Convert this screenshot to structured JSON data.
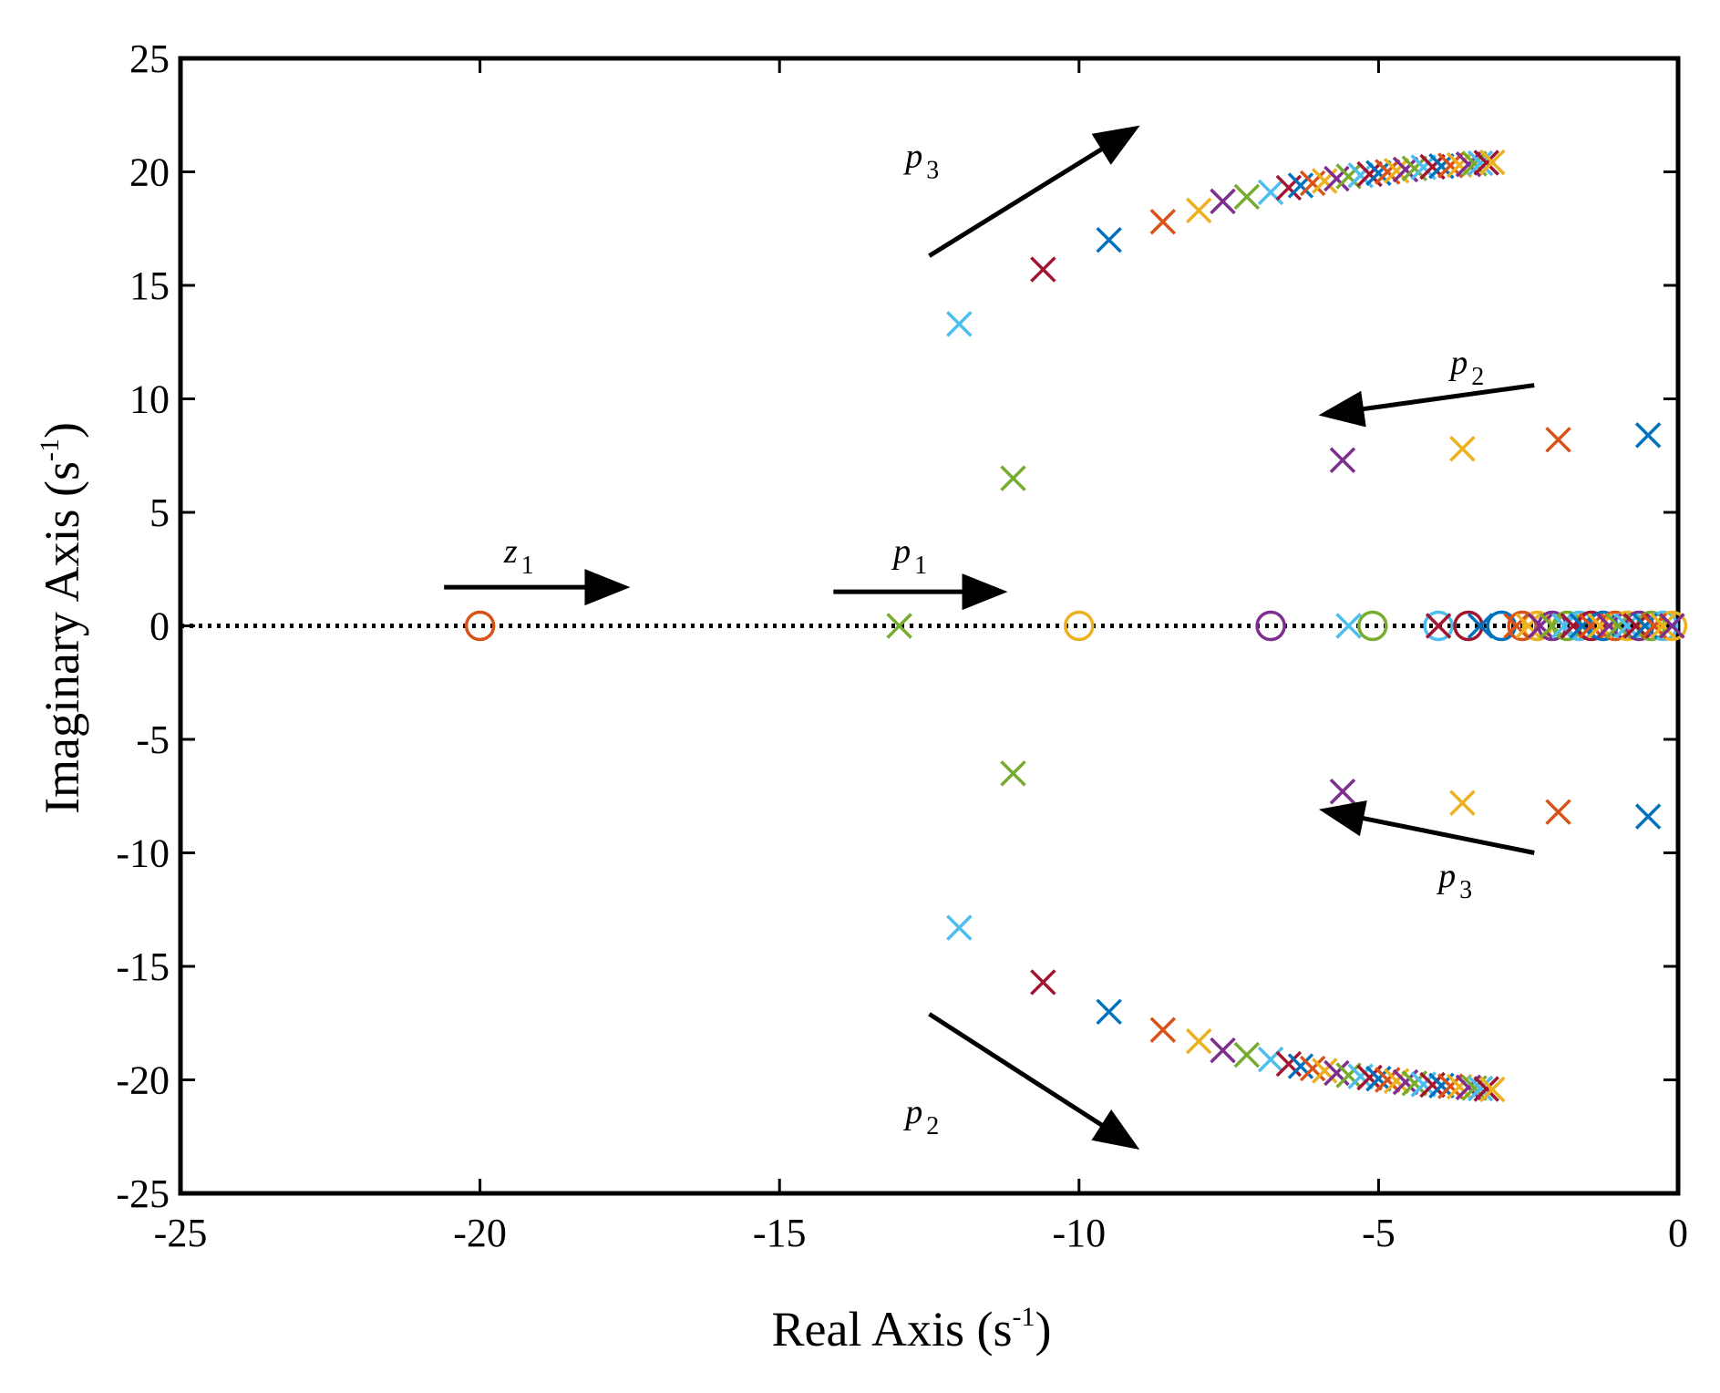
{
  "chart_data": {
    "type": "scatter",
    "title": "",
    "xlabel": "Real Axis (s",
    "xlabel_sup": "-1",
    "xlabel_close": ")",
    "ylabel": "Imaginary Axis (s",
    "ylabel_sup": "-1",
    "ylabel_close": ")",
    "xlim": [
      -25,
      0
    ],
    "ylim": [
      -25,
      25
    ],
    "xticks": [
      -25,
      -20,
      -15,
      -10,
      -5,
      0
    ],
    "yticks": [
      -25,
      -20,
      -15,
      -10,
      -5,
      0,
      5,
      10,
      15,
      20,
      25
    ],
    "xtick_labels": [
      "-25",
      "-20",
      "-15",
      "-10",
      "-5",
      "0"
    ],
    "ytick_labels": [
      "-25",
      "-20",
      "-15",
      "-10",
      "-5",
      "0",
      "5",
      "10",
      "15",
      "20",
      "25"
    ],
    "grid": false,
    "palette": [
      "#0072bd",
      "#d95319",
      "#edb120",
      "#7e2f8e",
      "#77ac30",
      "#4dbeee",
      "#a2142f"
    ],
    "zero_line": {
      "style": "dotted",
      "y": 0
    },
    "poles": [
      {
        "re": -0.5,
        "im": 8.4,
        "color": "#0072bd"
      },
      {
        "re": -0.5,
        "im": -8.4,
        "color": "#0072bd"
      },
      {
        "re": -2.0,
        "im": 8.2,
        "color": "#d95319"
      },
      {
        "re": -2.0,
        "im": -8.2,
        "color": "#d95319"
      },
      {
        "re": -3.6,
        "im": 7.8,
        "color": "#edb120"
      },
      {
        "re": -3.6,
        "im": -7.8,
        "color": "#edb120"
      },
      {
        "re": -5.6,
        "im": 7.3,
        "color": "#7e2f8e"
      },
      {
        "re": -5.6,
        "im": -7.3,
        "color": "#7e2f8e"
      },
      {
        "re": -11.1,
        "im": 6.5,
        "color": "#77ac30"
      },
      {
        "re": -11.1,
        "im": -6.5,
        "color": "#77ac30"
      },
      {
        "re": -12.0,
        "im": 13.3,
        "color": "#4dbeee"
      },
      {
        "re": -12.0,
        "im": -13.3,
        "color": "#4dbeee"
      },
      {
        "re": -10.6,
        "im": 15.7,
        "color": "#a2142f"
      },
      {
        "re": -10.6,
        "im": -15.7,
        "color": "#a2142f"
      },
      {
        "re": -9.5,
        "im": 17.0,
        "color": "#0072bd"
      },
      {
        "re": -9.5,
        "im": -17.0,
        "color": "#0072bd"
      },
      {
        "re": -8.6,
        "im": 17.8,
        "color": "#d95319"
      },
      {
        "re": -8.6,
        "im": -17.8,
        "color": "#d95319"
      },
      {
        "re": -8.0,
        "im": 18.3,
        "color": "#edb120"
      },
      {
        "re": -8.0,
        "im": -18.3,
        "color": "#edb120"
      },
      {
        "re": -7.6,
        "im": 18.7,
        "color": "#7e2f8e"
      },
      {
        "re": -7.6,
        "im": -18.7,
        "color": "#7e2f8e"
      },
      {
        "re": -7.2,
        "im": 18.9,
        "color": "#77ac30"
      },
      {
        "re": -7.2,
        "im": -18.9,
        "color": "#77ac30"
      },
      {
        "re": -6.8,
        "im": 19.1,
        "color": "#4dbeee"
      },
      {
        "re": -6.8,
        "im": -19.1,
        "color": "#4dbeee"
      },
      {
        "re": -6.5,
        "im": 19.3,
        "color": "#a2142f"
      },
      {
        "re": -6.5,
        "im": -19.3,
        "color": "#a2142f"
      },
      {
        "re": -6.3,
        "im": 19.4,
        "color": "#0072bd"
      },
      {
        "re": -6.3,
        "im": -19.4,
        "color": "#0072bd"
      },
      {
        "re": -6.1,
        "im": 19.5,
        "color": "#d95319"
      },
      {
        "re": -6.1,
        "im": -19.5,
        "color": "#d95319"
      },
      {
        "re": -5.9,
        "im": 19.6,
        "color": "#edb120"
      },
      {
        "re": -5.9,
        "im": -19.6,
        "color": "#edb120"
      },
      {
        "re": -5.7,
        "im": 19.7,
        "color": "#7e2f8e"
      },
      {
        "re": -5.7,
        "im": -19.7,
        "color": "#7e2f8e"
      },
      {
        "re": -5.5,
        "im": 19.8,
        "color": "#77ac30"
      },
      {
        "re": -5.5,
        "im": -19.8,
        "color": "#77ac30"
      },
      {
        "re": -5.3,
        "im": 19.85,
        "color": "#4dbeee"
      },
      {
        "re": -5.3,
        "im": -19.85,
        "color": "#4dbeee"
      },
      {
        "re": -5.15,
        "im": 19.9,
        "color": "#a2142f"
      },
      {
        "re": -5.15,
        "im": -19.9,
        "color": "#a2142f"
      },
      {
        "re": -5.0,
        "im": 19.95,
        "color": "#0072bd"
      },
      {
        "re": -5.0,
        "im": -19.95,
        "color": "#0072bd"
      },
      {
        "re": -4.85,
        "im": 20.0,
        "color": "#d95319"
      },
      {
        "re": -4.85,
        "im": -20.0,
        "color": "#d95319"
      },
      {
        "re": -4.7,
        "im": 20.05,
        "color": "#edb120"
      },
      {
        "re": -4.7,
        "im": -20.05,
        "color": "#edb120"
      },
      {
        "re": -4.55,
        "im": 20.1,
        "color": "#7e2f8e"
      },
      {
        "re": -4.55,
        "im": -20.1,
        "color": "#7e2f8e"
      },
      {
        "re": -4.4,
        "im": 20.15,
        "color": "#77ac30"
      },
      {
        "re": -4.4,
        "im": -20.15,
        "color": "#77ac30"
      },
      {
        "re": -4.25,
        "im": 20.2,
        "color": "#4dbeee"
      },
      {
        "re": -4.25,
        "im": -20.2,
        "color": "#4dbeee"
      },
      {
        "re": -4.1,
        "im": 20.22,
        "color": "#a2142f"
      },
      {
        "re": -4.1,
        "im": -20.22,
        "color": "#a2142f"
      },
      {
        "re": -3.95,
        "im": 20.25,
        "color": "#0072bd"
      },
      {
        "re": -3.95,
        "im": -20.25,
        "color": "#0072bd"
      },
      {
        "re": -3.8,
        "im": 20.28,
        "color": "#d95319"
      },
      {
        "re": -3.8,
        "im": -20.28,
        "color": "#d95319"
      },
      {
        "re": -3.65,
        "im": 20.3,
        "color": "#edb120"
      },
      {
        "re": -3.65,
        "im": -20.3,
        "color": "#edb120"
      },
      {
        "re": -3.5,
        "im": 20.33,
        "color": "#7e2f8e"
      },
      {
        "re": -3.5,
        "im": -20.33,
        "color": "#7e2f8e"
      },
      {
        "re": -3.4,
        "im": 20.36,
        "color": "#77ac30"
      },
      {
        "re": -3.4,
        "im": -20.36,
        "color": "#77ac30"
      },
      {
        "re": -3.3,
        "im": 20.38,
        "color": "#4dbeee"
      },
      {
        "re": -3.3,
        "im": -20.38,
        "color": "#4dbeee"
      },
      {
        "re": -3.2,
        "im": 20.4,
        "color": "#a2142f"
      },
      {
        "re": -3.2,
        "im": -20.4,
        "color": "#a2142f"
      },
      {
        "re": -3.1,
        "im": 20.42,
        "color": "#edb120"
      },
      {
        "re": -3.1,
        "im": -20.42,
        "color": "#edb120"
      },
      {
        "re": -13.0,
        "im": 0,
        "color": "#77ac30"
      },
      {
        "re": -5.5,
        "im": 0,
        "color": "#4dbeee"
      },
      {
        "re": -4.0,
        "im": 0,
        "color": "#a2142f"
      },
      {
        "re": -3.3,
        "im": 0,
        "color": "#0072bd"
      },
      {
        "re": -2.7,
        "im": 0,
        "color": "#d95319"
      },
      {
        "re": -2.5,
        "im": 0,
        "color": "#edb120"
      },
      {
        "re": -2.3,
        "im": 0,
        "color": "#7e2f8e"
      },
      {
        "re": -2.1,
        "im": 0,
        "color": "#77ac30"
      },
      {
        "re": -1.9,
        "im": 0,
        "color": "#4dbeee"
      },
      {
        "re": -1.75,
        "im": 0,
        "color": "#a2142f"
      },
      {
        "re": -1.6,
        "im": 0,
        "color": "#0072bd"
      },
      {
        "re": -1.45,
        "im": 0,
        "color": "#d95319"
      },
      {
        "re": -1.3,
        "im": 0,
        "color": "#edb120"
      },
      {
        "re": -1.15,
        "im": 0,
        "color": "#7e2f8e"
      },
      {
        "re": -1.0,
        "im": 0,
        "color": "#77ac30"
      },
      {
        "re": -0.85,
        "im": 0,
        "color": "#4dbeee"
      },
      {
        "re": -0.7,
        "im": 0,
        "color": "#a2142f"
      },
      {
        "re": -0.55,
        "im": 0,
        "color": "#0072bd"
      },
      {
        "re": -0.4,
        "im": 0,
        "color": "#d95319"
      },
      {
        "re": -0.25,
        "im": 0,
        "color": "#edb120"
      },
      {
        "re": -0.1,
        "im": 0,
        "color": "#7e2f8e"
      }
    ],
    "zeros": [
      {
        "re": -20.0,
        "im": 0,
        "color": "#d95319"
      },
      {
        "re": -10.0,
        "im": 0,
        "color": "#edb120"
      },
      {
        "re": -6.8,
        "im": 0,
        "color": "#7e2f8e"
      },
      {
        "re": -5.1,
        "im": 0,
        "color": "#77ac30"
      },
      {
        "re": -4.0,
        "im": 0,
        "color": "#4dbeee"
      },
      {
        "re": -3.5,
        "im": 0,
        "color": "#a2142f"
      },
      {
        "re": -2.95,
        "im": 0,
        "color": "#0072bd"
      },
      {
        "re": -2.6,
        "im": 0,
        "color": "#d95319"
      },
      {
        "re": -2.35,
        "im": 0,
        "color": "#edb120"
      },
      {
        "re": -2.1,
        "im": 0,
        "color": "#7e2f8e"
      },
      {
        "re": -1.85,
        "im": 0,
        "color": "#77ac30"
      },
      {
        "re": -1.65,
        "im": 0,
        "color": "#4dbeee"
      },
      {
        "re": -1.45,
        "im": 0,
        "color": "#a2142f"
      },
      {
        "re": -1.25,
        "im": 0,
        "color": "#0072bd"
      },
      {
        "re": -1.05,
        "im": 0,
        "color": "#d95319"
      },
      {
        "re": -0.85,
        "im": 0,
        "color": "#edb120"
      },
      {
        "re": -0.65,
        "im": 0,
        "color": "#7e2f8e"
      },
      {
        "re": -0.45,
        "im": 0,
        "color": "#77ac30"
      },
      {
        "re": -0.25,
        "im": 0,
        "color": "#4dbeee"
      },
      {
        "re": -0.1,
        "im": 0,
        "color": "#edb120"
      }
    ],
    "annotations": [
      {
        "id": "z1",
        "label": "z",
        "sub": "1",
        "text_at": [
          -19.6,
          2.8
        ],
        "arrow": {
          "from": [
            -20.6,
            1.7
          ],
          "to": [
            -18.1,
            1.7
          ]
        }
      },
      {
        "id": "p1",
        "label": "p",
        "sub": "1",
        "text_at": [
          -13.1,
          2.8
        ],
        "arrow": {
          "from": [
            -14.1,
            1.5
          ],
          "to": [
            -11.8,
            1.5
          ]
        }
      },
      {
        "id": "p3-upper",
        "label": "p",
        "sub": "3",
        "text_at": [
          -12.9,
          20.2
        ],
        "arrow": {
          "from": [
            -12.5,
            16.3
          ],
          "to": [
            -9.5,
            21.2
          ]
        }
      },
      {
        "id": "p2-upper",
        "label": "p",
        "sub": "2",
        "text_at": [
          -3.8,
          11.1
        ],
        "arrow": {
          "from": [
            -2.4,
            10.6
          ],
          "to": [
            -5.4,
            9.5
          ]
        }
      },
      {
        "id": "p3-lower",
        "label": "p",
        "sub": "3",
        "text_at": [
          -4.0,
          -11.5
        ],
        "arrow": {
          "from": [
            -2.4,
            -10.0
          ],
          "to": [
            -5.4,
            -8.4
          ]
        }
      },
      {
        "id": "p2-lower",
        "label": "p",
        "sub": "2",
        "text_at": [
          -12.9,
          -21.9
        ],
        "arrow": {
          "from": [
            -12.5,
            -17.1
          ],
          "to": [
            -9.5,
            -22.2
          ]
        }
      }
    ]
  }
}
